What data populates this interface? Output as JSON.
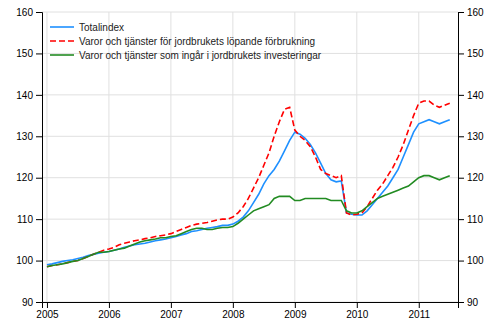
{
  "chart_data": {
    "type": "line",
    "x": [
      2005,
      2005.0833333333333,
      2005.1666666666667,
      2005.25,
      2005.3333333333333,
      2005.4166666666667,
      2005.5,
      2005.5833333333333,
      2005.6666666666667,
      2005.75,
      2005.8333333333333,
      2005.9166666666667,
      2006,
      2006.0833333333333,
      2006.1666666666667,
      2006.25,
      2006.3333333333333,
      2006.4166666666667,
      2006.5,
      2006.5833333333333,
      2006.6666666666667,
      2006.75,
      2006.8333333333333,
      2006.9166666666667,
      2007,
      2007.0833333333333,
      2007.1666666666667,
      2007.25,
      2007.3333333333333,
      2007.4166666666667,
      2007.5,
      2007.5833333333333,
      2007.6666666666667,
      2007.75,
      2007.8333333333333,
      2007.9166666666667,
      2008,
      2008.0833333333333,
      2008.1666666666667,
      2008.25,
      2008.3333333333333,
      2008.4166666666667,
      2008.5,
      2008.5833333333333,
      2008.6666666666667,
      2008.75,
      2008.8333333333333,
      2008.9166666666667,
      2009,
      2009.0833333333333,
      2009.1666666666667,
      2009.25,
      2009.3333333333333,
      2009.4166666666667,
      2009.5,
      2009.5833333333333,
      2009.6666666666667,
      2009.75,
      2009.8333333333333,
      2009.9166666666667,
      2010,
      2010.0833333333333,
      2010.1666666666667,
      2010.25,
      2010.3333333333333,
      2010.4166666666667,
      2010.5,
      2010.5833333333333,
      2010.6666666666667,
      2010.75,
      2010.8333333333333,
      2010.9166666666667,
      2011,
      2011.0833333333333,
      2011.1666666666667,
      2011.25,
      2011.3333333333333,
      2011.4166666666667,
      2011.5
    ],
    "series": [
      {
        "name": "Totalindex",
        "color": "#1e90ff",
        "line_style": "solid",
        "values": [
          99.0,
          99.2,
          99.5,
          99.8,
          100.0,
          100.2,
          100.5,
          100.8,
          101.2,
          101.5,
          101.8,
          102.0,
          102.2,
          102.5,
          102.8,
          103.2,
          103.5,
          103.8,
          104.0,
          104.2,
          104.5,
          104.8,
          105.0,
          105.2,
          105.5,
          105.8,
          106.2,
          106.5,
          107.0,
          107.2,
          107.5,
          107.8,
          108.0,
          108.2,
          108.5,
          108.5,
          108.8,
          109.5,
          110.5,
          112.0,
          114.0,
          116.0,
          118.5,
          120.5,
          122.0,
          124.0,
          126.5,
          129.0,
          131.0,
          130.5,
          129.5,
          128.0,
          126.0,
          123.5,
          121.0,
          119.5,
          119.0,
          119.2,
          111.5,
          111.2,
          111.0,
          111.0,
          112.0,
          113.5,
          115.0,
          116.5,
          118.0,
          120.0,
          122.0,
          125.0,
          128.0,
          131.0,
          133.0,
          133.5,
          134.0,
          133.5,
          133.0,
          133.5,
          134.0
        ]
      },
      {
        "name": "Varor och tjänster för jordbrukets löpande förbrukning",
        "color": "#ff0000",
        "line_style": "dashed",
        "values": [
          98.5,
          98.8,
          99.0,
          99.2,
          99.5,
          99.8,
          100.0,
          100.5,
          101.0,
          101.5,
          102.0,
          102.5,
          102.8,
          103.2,
          103.8,
          104.2,
          104.5,
          104.8,
          105.0,
          105.3,
          105.5,
          105.8,
          106.0,
          106.2,
          106.5,
          107.0,
          107.5,
          108.0,
          108.5,
          108.8,
          109.0,
          109.2,
          109.5,
          109.8,
          110.0,
          110.0,
          110.5,
          111.5,
          113.0,
          115.0,
          117.5,
          120.0,
          123.0,
          126.0,
          130.0,
          133.5,
          136.5,
          137.0,
          131.5,
          130.0,
          129.0,
          127.5,
          125.0,
          122.0,
          121.0,
          120.5,
          120.0,
          120.5,
          111.5,
          111.0,
          111.2,
          111.5,
          113.0,
          115.0,
          117.0,
          118.5,
          120.5,
          122.5,
          125.0,
          128.0,
          131.5,
          135.0,
          138.0,
          138.5,
          138.5,
          137.5,
          137.0,
          137.5,
          138.0
        ]
      },
      {
        "name": "Varor och tjänster som ingår i jordbrukets investeringar",
        "color": "#228b22",
        "line_style": "solid",
        "values": [
          98.5,
          98.8,
          99.0,
          99.2,
          99.5,
          99.8,
          100.0,
          100.5,
          101.0,
          101.5,
          102.0,
          102.0,
          102.2,
          102.5,
          102.8,
          103.0,
          103.5,
          104.0,
          104.5,
          104.8,
          105.0,
          105.2,
          105.5,
          105.5,
          105.8,
          106.0,
          106.5,
          107.0,
          107.5,
          107.8,
          107.8,
          107.5,
          107.5,
          107.8,
          108.0,
          108.0,
          108.2,
          109.0,
          110.0,
          111.0,
          112.0,
          112.5,
          113.0,
          113.5,
          115.0,
          115.5,
          115.5,
          115.5,
          114.5,
          114.5,
          115.0,
          115.0,
          115.0,
          115.0,
          115.0,
          114.5,
          114.5,
          114.5,
          112.0,
          111.5,
          111.5,
          112.0,
          113.0,
          114.0,
          115.0,
          115.5,
          116.0,
          116.5,
          117.0,
          117.5,
          118.0,
          119.0,
          120.0,
          120.5,
          120.5,
          120.0,
          119.5,
          120.0,
          120.5
        ]
      }
    ],
    "xlim": [
      2004.92,
      2011.6333333333334
    ],
    "xticks": [
      2005,
      2006,
      2007,
      2008,
      2009,
      2010,
      2011
    ],
    "ylim": [
      90,
      160
    ],
    "yticks": [
      90,
      100,
      110,
      120,
      130,
      140,
      150,
      160
    ],
    "y2lim": [
      90,
      160
    ],
    "y2ticks": [
      90,
      100,
      110,
      120,
      130,
      140,
      150,
      160
    ],
    "grid": true,
    "legend": "upper-left"
  }
}
